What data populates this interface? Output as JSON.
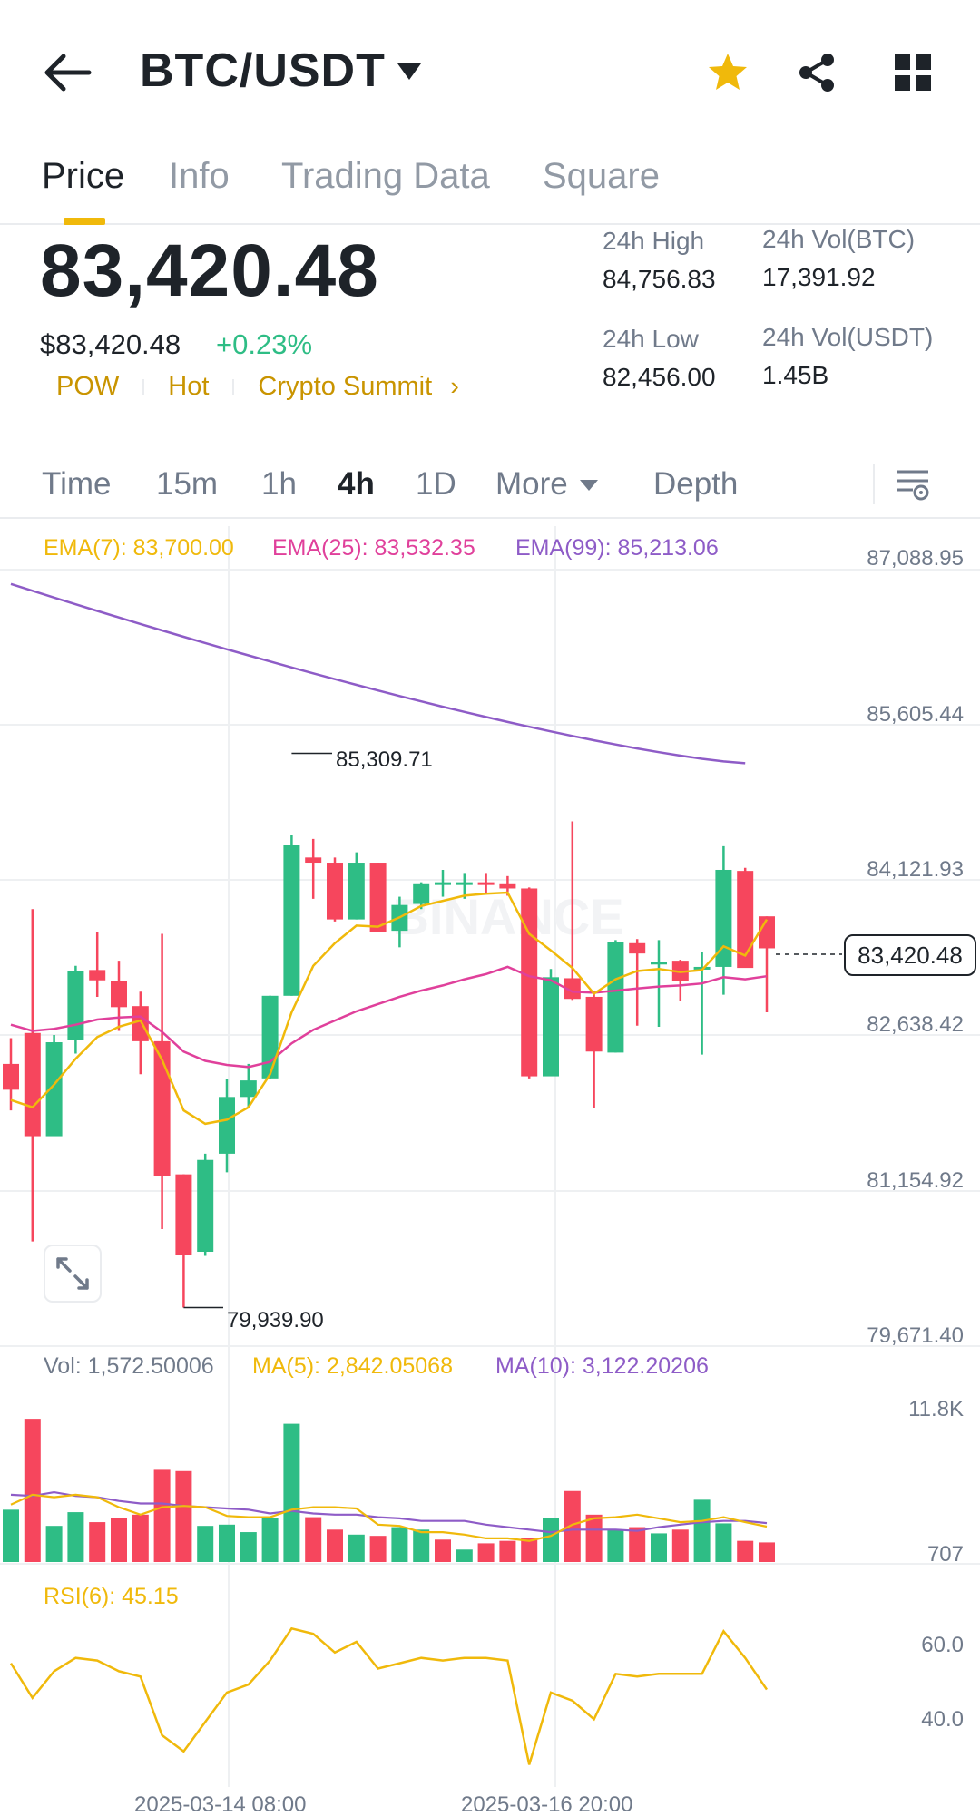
{
  "header": {
    "pair": "BTC/USDT",
    "icons": [
      "arrow-left-icon",
      "caret-down-icon",
      "star-icon",
      "share-icon",
      "grid-icon"
    ],
    "star_color": "#f0b90b"
  },
  "tabs": [
    {
      "label": "Price",
      "active": true
    },
    {
      "label": "Info",
      "active": false
    },
    {
      "label": "Trading Data",
      "active": false
    },
    {
      "label": "Square",
      "active": false
    }
  ],
  "price": {
    "last": "83,420.48",
    "fiat": "$83,420.48",
    "change": "+0.23%",
    "tags": [
      "POW",
      "Hot",
      "Crypto Summit"
    ],
    "tag_arrow": "›"
  },
  "stats": {
    "high_label": "24h High",
    "high_value": "84,756.83",
    "low_label": "24h Low",
    "low_value": "82,456.00",
    "vol_btc_label": "24h Vol(BTC)",
    "vol_btc_value": "17,391.92",
    "vol_usdt_label": "24h Vol(USDT)",
    "vol_usdt_value": "1.45B"
  },
  "intervals": {
    "items": [
      "Time",
      "15m",
      "1h",
      "4h",
      "1D",
      "More",
      "Depth"
    ],
    "active": "4h"
  },
  "indicators": {
    "ema7": "EMA(7): 83,700.00",
    "ema25": "EMA(25): 83,532.35",
    "ema99": "EMA(99): 85,213.06",
    "vol": "Vol: 1,572.50006",
    "ma5": "MA(5): 2,842.05068",
    "ma10": "MA(10): 3,122.20206",
    "rsi": "RSI(6): 45.15"
  },
  "price_axis": [
    "87,088.95",
    "85,605.44",
    "84,121.93",
    "82,638.42",
    "81,154.92",
    "79,671.40"
  ],
  "volume_axis": [
    "11.8K",
    "707"
  ],
  "rsi_axis": [
    "60.0",
    "40.0"
  ],
  "annotations": {
    "high_marker": "85,309.71",
    "low_marker": "79,939.90",
    "current_price": "83,420.48"
  },
  "x_axis_dates": [
    "2025-03-14 08:00",
    "2025-03-16 20:00"
  ],
  "colors": {
    "up": "#2ebd85",
    "down": "#f6465d",
    "ema7": "#f0b90b",
    "ema25": "#e0409b",
    "ema99": "#8e5cc7",
    "accent": "#f0b90b",
    "tag": "#c99400"
  },
  "chart_data": {
    "type": "candlestick",
    "price_range": [
      79671.4,
      87088.95
    ],
    "candles": [
      {
        "o": 82300,
        "h": 82550,
        "l": 81850,
        "c": 82050
      },
      {
        "o": 82600,
        "h": 83800,
        "l": 80580,
        "c": 81600
      },
      {
        "o": 81600,
        "h": 82580,
        "l": 81600,
        "c": 82510
      },
      {
        "o": 82530,
        "h": 83250,
        "l": 82400,
        "c": 83200
      },
      {
        "o": 83210,
        "h": 83580,
        "l": 82950,
        "c": 83110
      },
      {
        "o": 83100,
        "h": 83300,
        "l": 82620,
        "c": 82850
      },
      {
        "o": 82860,
        "h": 83000,
        "l": 82200,
        "c": 82520
      },
      {
        "o": 82520,
        "h": 83560,
        "l": 80700,
        "c": 81210
      },
      {
        "o": 81230,
        "h": 81230,
        "l": 79940,
        "c": 80450
      },
      {
        "o": 80480,
        "h": 81430,
        "l": 80440,
        "c": 81370
      },
      {
        "o": 81430,
        "h": 82150,
        "l": 81250,
        "c": 81980
      },
      {
        "o": 81980,
        "h": 82300,
        "l": 81880,
        "c": 82140
      },
      {
        "o": 82160,
        "h": 82960,
        "l": 82160,
        "c": 82960
      },
      {
        "o": 82960,
        "h": 84520,
        "l": 82960,
        "c": 84420
      },
      {
        "o": 84300,
        "h": 84480,
        "l": 83900,
        "c": 84250
      },
      {
        "o": 84250,
        "h": 84300,
        "l": 83680,
        "c": 83700
      },
      {
        "o": 83700,
        "h": 84350,
        "l": 83700,
        "c": 84250
      },
      {
        "o": 84250,
        "h": 84250,
        "l": 83580,
        "c": 83580
      },
      {
        "o": 83590,
        "h": 83920,
        "l": 83430,
        "c": 83840
      },
      {
        "o": 83850,
        "h": 84060,
        "l": 83800,
        "c": 84050
      },
      {
        "o": 84050,
        "h": 84180,
        "l": 83920,
        "c": 84060
      },
      {
        "o": 84060,
        "h": 84150,
        "l": 83900,
        "c": 84060
      },
      {
        "o": 84060,
        "h": 84150,
        "l": 83950,
        "c": 84040
      },
      {
        "o": 84050,
        "h": 84120,
        "l": 83930,
        "c": 84000
      },
      {
        "o": 84000,
        "h": 84010,
        "l": 82160,
        "c": 82180
      },
      {
        "o": 82180,
        "h": 83220,
        "l": 82180,
        "c": 83140
      },
      {
        "o": 83130,
        "h": 84650,
        "l": 82920,
        "c": 82930
      },
      {
        "o": 82950,
        "h": 83010,
        "l": 81870,
        "c": 82420
      },
      {
        "o": 82410,
        "h": 83500,
        "l": 82410,
        "c": 83480
      },
      {
        "o": 83470,
        "h": 83510,
        "l": 82670,
        "c": 83370
      },
      {
        "o": 83290,
        "h": 83500,
        "l": 82660,
        "c": 83290
      },
      {
        "o": 83300,
        "h": 83310,
        "l": 82910,
        "c": 83100
      },
      {
        "o": 83230,
        "h": 83380,
        "l": 82390,
        "c": 83240
      },
      {
        "o": 83240,
        "h": 84410,
        "l": 82970,
        "c": 84180
      },
      {
        "o": 84170,
        "h": 84200,
        "l": 83240,
        "c": 83230
      },
      {
        "o": 83730,
        "h": 83730,
        "l": 82800,
        "c": 83420
      }
    ],
    "ema7": [
      81950,
      81880,
      82100,
      82350,
      82560,
      82660,
      82720,
      82340,
      81850,
      81720,
      81760,
      81880,
      82200,
      82800,
      83250,
      83470,
      83640,
      83630,
      83720,
      83830,
      83880,
      83930,
      83950,
      83960,
      83560,
      83400,
      83230,
      82980,
      83120,
      83200,
      83220,
      83190,
      83210,
      83440,
      83350,
      83700
    ],
    "ema25": [
      82680,
      82620,
      82640,
      82680,
      82730,
      82750,
      82760,
      82610,
      82420,
      82330,
      82290,
      82270,
      82320,
      82500,
      82630,
      82720,
      82810,
      82880,
      82950,
      83010,
      83060,
      83120,
      83170,
      83240,
      83150,
      83110,
      83000,
      82990,
      83010,
      83030,
      83050,
      83060,
      83080,
      83140,
      83120,
      83150
    ],
    "ema99_endpoints": {
      "start": 86950,
      "end": 85213.06
    },
    "volume": [
      4200,
      11500,
      2900,
      4000,
      3200,
      3500,
      3800,
      7400,
      7300,
      2900,
      3000,
      2400,
      3500,
      11100,
      3600,
      2600,
      2200,
      2100,
      2800,
      2600,
      1800,
      1000,
      1500,
      1700,
      1900,
      3500,
      5700,
      3800,
      2600,
      2800,
      2300,
      2600,
      5000,
      3100,
      1700,
      1572.5
    ],
    "volume_up": [
      true,
      false,
      true,
      true,
      false,
      false,
      false,
      false,
      false,
      true,
      true,
      true,
      true,
      true,
      false,
      false,
      true,
      false,
      true,
      true,
      false,
      true,
      false,
      false,
      false,
      true,
      false,
      false,
      true,
      false,
      true,
      false,
      true,
      true,
      false,
      false
    ],
    "ma5": [
      4600,
      5400,
      5200,
      5400,
      5200,
      4400,
      3800,
      4400,
      4500,
      4400,
      3700,
      3600,
      3600,
      4200,
      4400,
      4400,
      4300,
      3000,
      2900,
      2400,
      2400,
      2200,
      1900,
      1900,
      1700,
      2100,
      3000,
      3500,
      3600,
      3800,
      3500,
      3200,
      3300,
      3600,
      3200,
      2842.05
    ],
    "ma10": [
      5400,
      5300,
      5600,
      5300,
      5200,
      4900,
      4700,
      4700,
      4500,
      4400,
      4300,
      4200,
      3900,
      4100,
      3900,
      3800,
      3800,
      3600,
      3500,
      3300,
      3300,
      3300,
      3000,
      2800,
      2600,
      2400,
      2600,
      2600,
      2600,
      2500,
      2800,
      3000,
      3200,
      3300,
      3300,
      3122.2
    ]
  },
  "rsi_data": [
    55,
    42,
    52,
    57,
    56,
    52,
    50,
    28,
    22,
    33,
    44,
    47,
    56,
    68,
    66,
    59,
    63,
    53,
    55,
    57,
    56,
    57,
    57,
    56,
    17,
    44,
    41,
    34,
    51,
    50,
    51,
    51,
    51,
    67,
    57,
    45.15
  ]
}
